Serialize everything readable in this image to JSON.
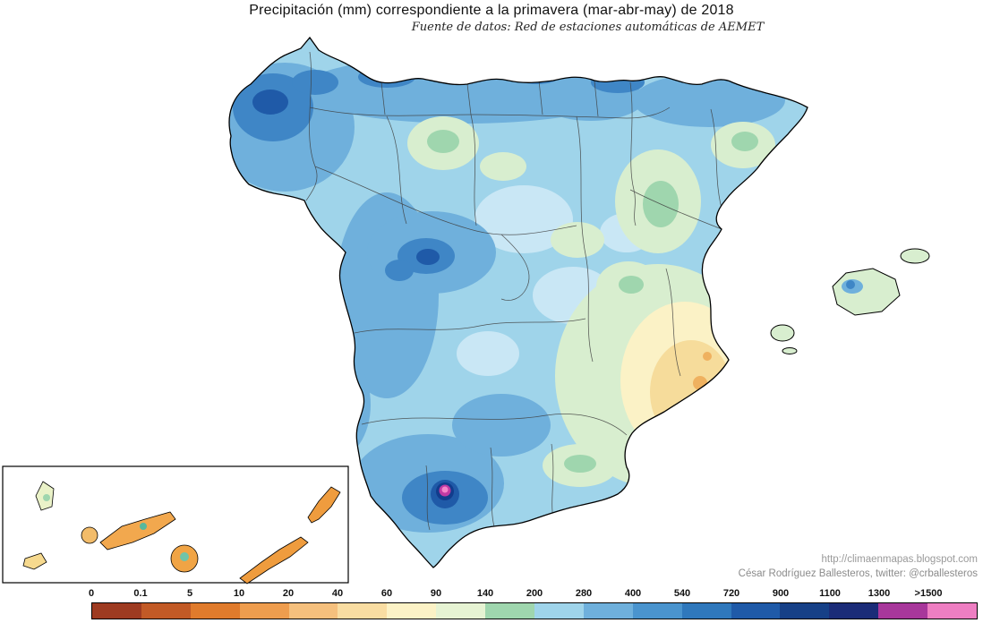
{
  "header": {
    "title": "Precipitación (mm) correspondiente a la primavera (mar-abr-may)  de 2018",
    "subtitle": "Fuente de datos: Red de estaciones automáticas de AEMET"
  },
  "credits": {
    "url": "http://climaenmapas.blogspot.com",
    "author": "César Rodríguez Ballesteros, twitter: @crballesteros"
  },
  "legend": {
    "items": [
      {
        "label": "0",
        "color": "#9E3B21"
      },
      {
        "label": "0.1",
        "color": "#C25A26"
      },
      {
        "label": "5",
        "color": "#E07B2C"
      },
      {
        "label": "10",
        "color": "#EE9D4E"
      },
      {
        "label": "20",
        "color": "#F5C07D"
      },
      {
        "label": "40",
        "color": "#F9DDA2"
      },
      {
        "label": "60",
        "color": "#FCF2C6"
      },
      {
        "label": "90",
        "color": "#E6F3D3"
      },
      {
        "label": "140",
        "color": "#9FD6AE"
      },
      {
        "label": "200",
        "color": "#9FD4EA"
      },
      {
        "label": "280",
        "color": "#6FB0DC"
      },
      {
        "label": "400",
        "color": "#4A94CE"
      },
      {
        "label": "540",
        "color": "#2F78BC"
      },
      {
        "label": "720",
        "color": "#1F5AA8"
      },
      {
        "label": "900",
        "color": "#164087"
      },
      {
        "label": "1100",
        "color": "#1B2C78"
      },
      {
        "label": "1300",
        "color": "#A8379B"
      },
      {
        "label": ">1500",
        "color": "#EE7EC2"
      }
    ]
  }
}
